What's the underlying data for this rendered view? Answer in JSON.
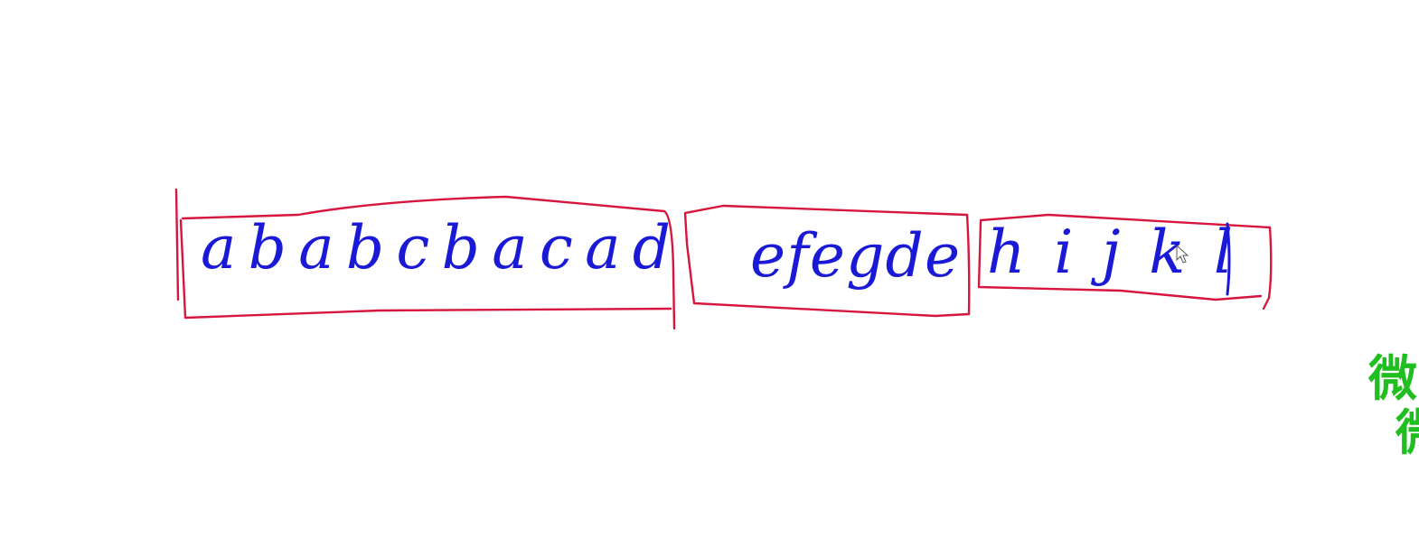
{
  "groups": [
    {
      "text": "ababcbacad"
    },
    {
      "text": "efegde"
    },
    {
      "text": "hijkl"
    }
  ],
  "colors": {
    "ink": "#1a1ad6",
    "box": "#d6163c",
    "watermark": "#1fbf1f"
  },
  "watermark": {
    "line1": "微",
    "line2": "微"
  }
}
